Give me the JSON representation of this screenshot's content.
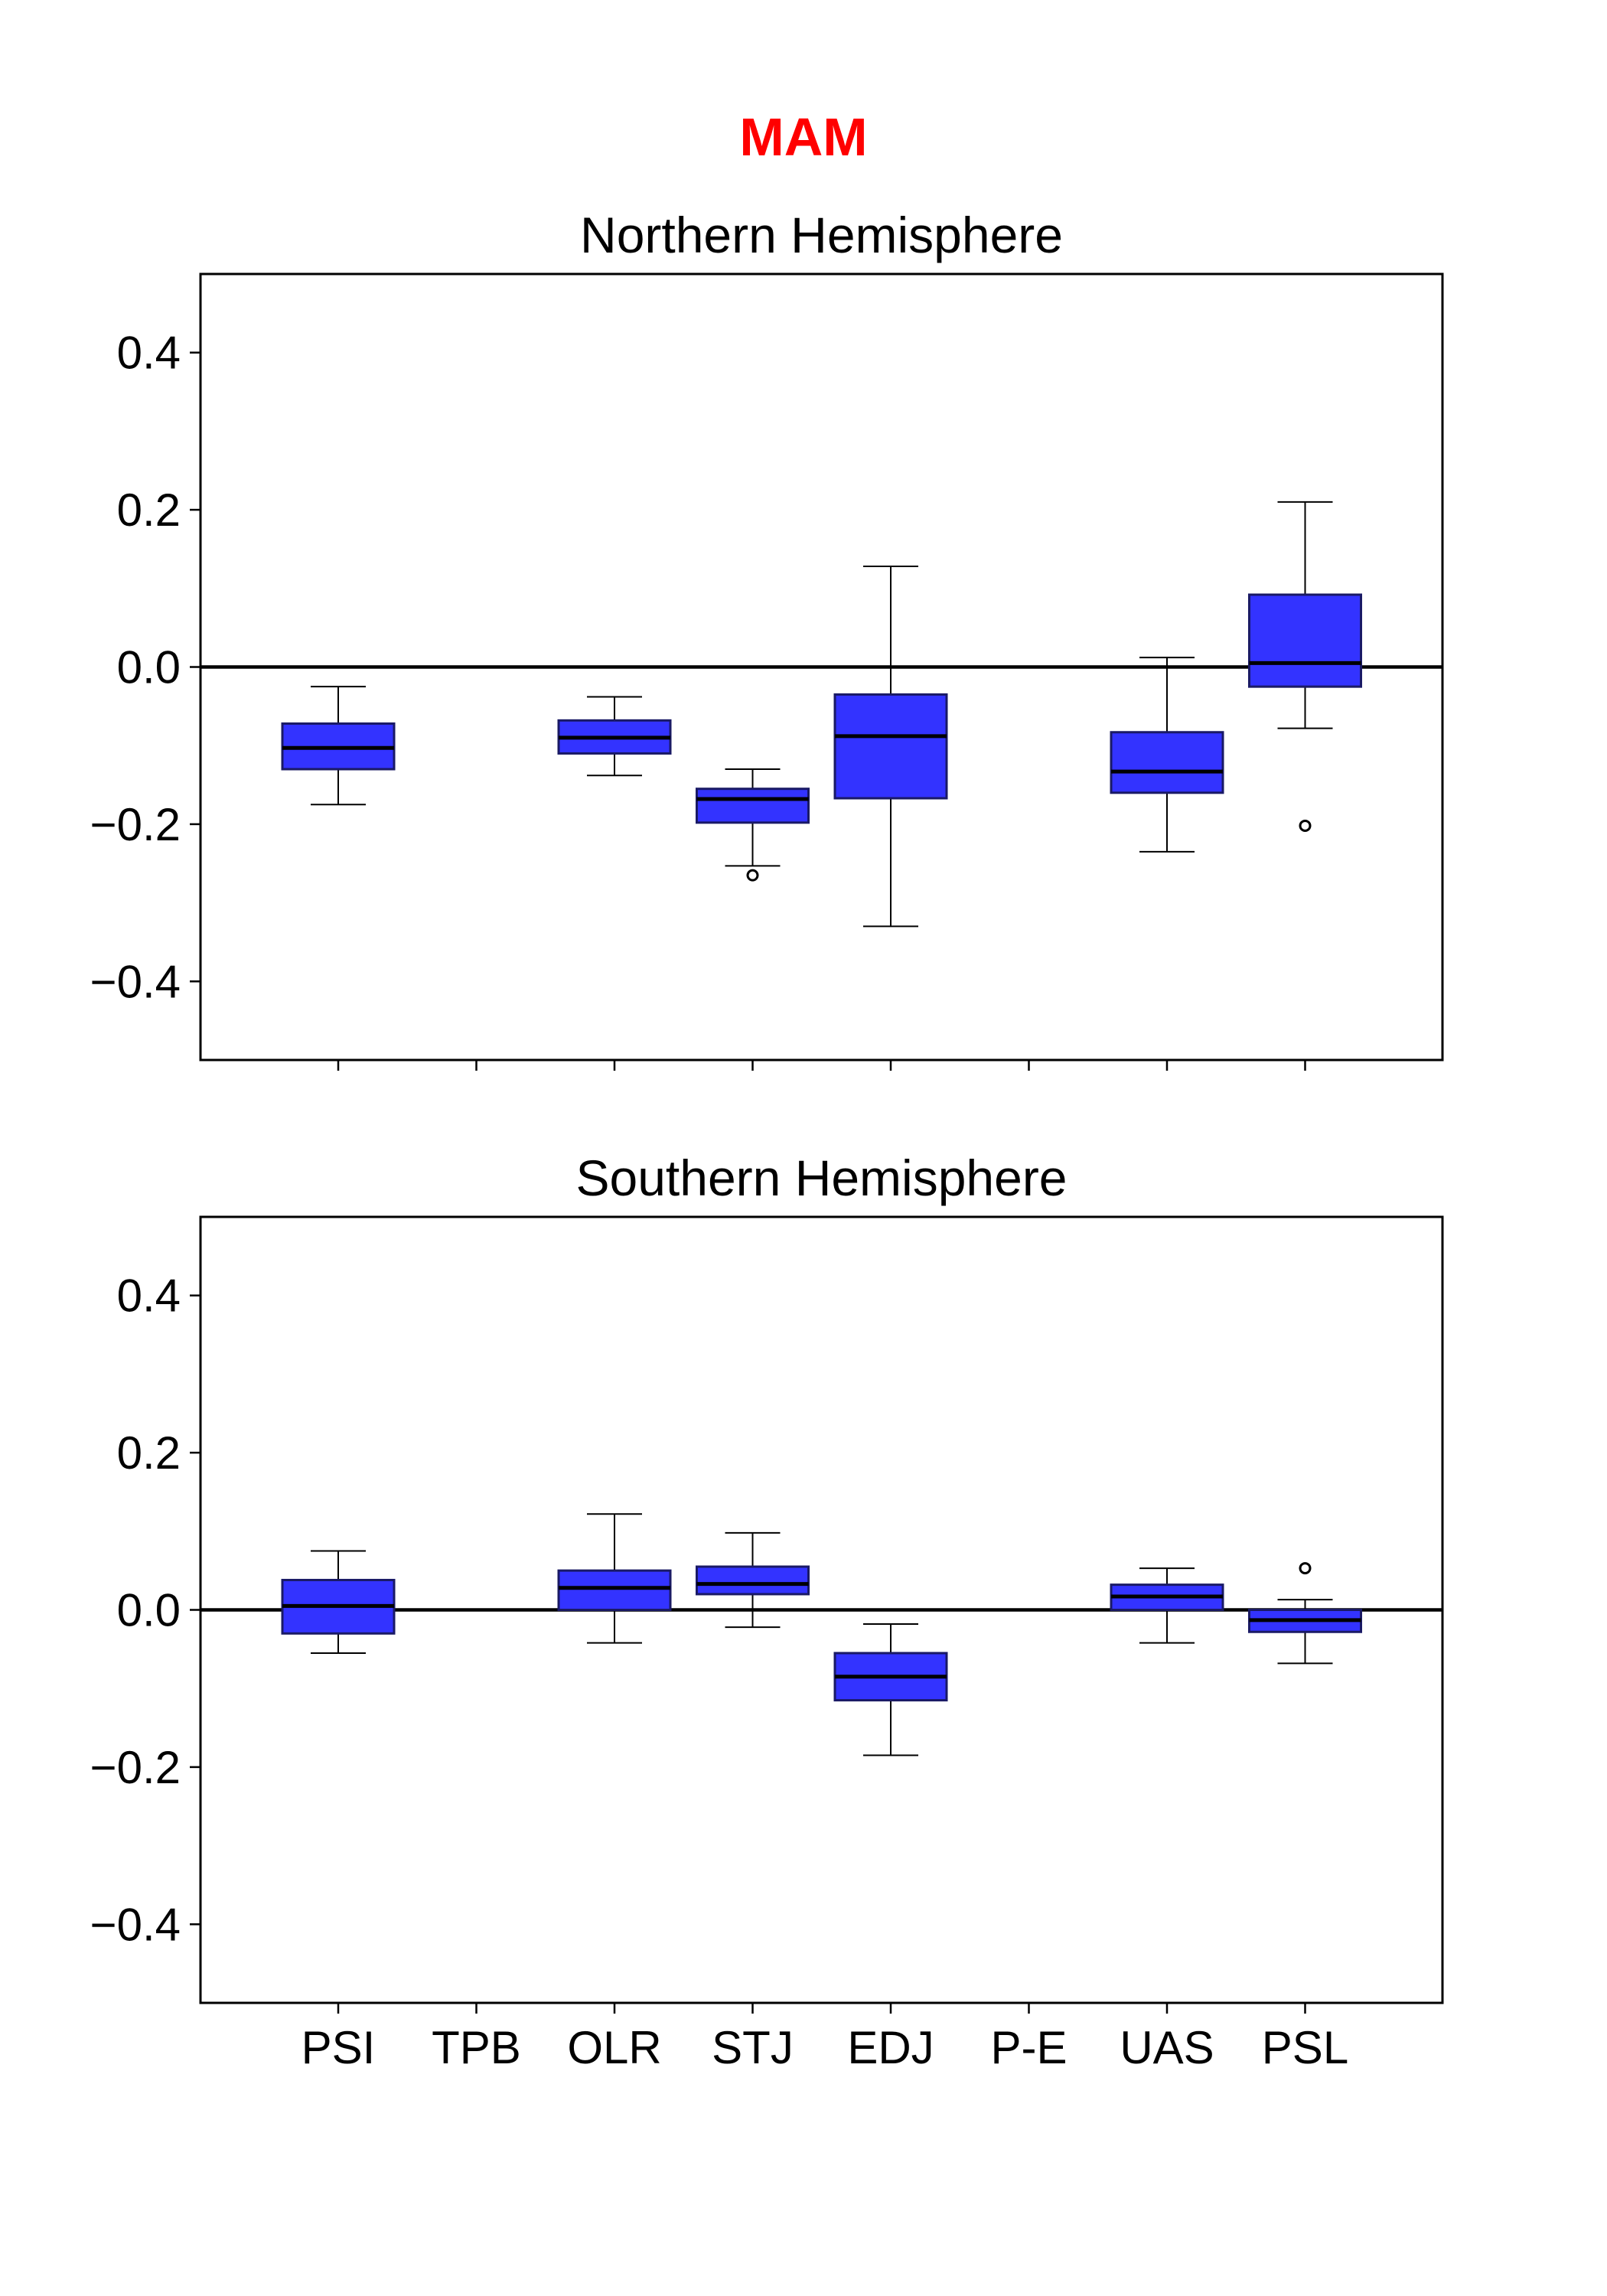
{
  "figure": {
    "suptitle": "MAM",
    "suptitle_color": "#ff0000"
  },
  "colors": {
    "box_fill": "#3333ff",
    "box_edge": "#1a1a66",
    "median": "#000000",
    "zero_line": "#000000"
  },
  "chart_data": [
    {
      "type": "box",
      "title": "Northern Hemisphere",
      "xlabel": "",
      "ylabel": "",
      "categories": [
        "PSI",
        "TPB",
        "OLR",
        "STJ",
        "EDJ",
        "P-E",
        "UAS",
        "PSL"
      ],
      "show_tick_labels": false,
      "ylim": [
        -0.5,
        0.5
      ],
      "yticks": [
        -0.4,
        -0.2,
        0.0,
        0.2,
        0.4
      ],
      "ytick_labels": [
        "−0.4",
        "−0.2",
        "0.0",
        "0.2",
        "0.4"
      ],
      "zero_line": true,
      "grid": false,
      "boxes": [
        {
          "category": "PSI",
          "whisker_low": -0.175,
          "q1": -0.13,
          "median": -0.103,
          "q3": -0.072,
          "whisker_high": -0.025,
          "outliers": []
        },
        {
          "category": "TPB"
        },
        {
          "category": "OLR",
          "whisker_low": -0.138,
          "q1": -0.11,
          "median": -0.09,
          "q3": -0.068,
          "whisker_high": -0.038,
          "outliers": []
        },
        {
          "category": "STJ",
          "whisker_low": -0.253,
          "q1": -0.198,
          "median": -0.168,
          "q3": -0.155,
          "whisker_high": -0.13,
          "outliers": [
            -0.265
          ]
        },
        {
          "category": "EDJ",
          "whisker_low": -0.33,
          "q1": -0.167,
          "median": -0.088,
          "q3": -0.035,
          "whisker_high": 0.128,
          "outliers": []
        },
        {
          "category": "P-E"
        },
        {
          "category": "UAS",
          "whisker_low": -0.235,
          "q1": -0.16,
          "median": -0.133,
          "q3": -0.083,
          "whisker_high": 0.012,
          "outliers": []
        },
        {
          "category": "PSL",
          "whisker_low": -0.078,
          "q1": -0.025,
          "median": 0.005,
          "q3": 0.092,
          "whisker_high": 0.21,
          "outliers": [
            -0.202
          ]
        }
      ]
    },
    {
      "type": "box",
      "title": "Southern Hemisphere",
      "xlabel": "",
      "ylabel": "",
      "categories": [
        "PSI",
        "TPB",
        "OLR",
        "STJ",
        "EDJ",
        "P-E",
        "UAS",
        "PSL"
      ],
      "show_tick_labels": true,
      "ylim": [
        -0.5,
        0.5
      ],
      "yticks": [
        -0.4,
        -0.2,
        0.0,
        0.2,
        0.4
      ],
      "ytick_labels": [
        "−0.4",
        "−0.2",
        "0.0",
        "0.2",
        "0.4"
      ],
      "zero_line": true,
      "grid": false,
      "boxes": [
        {
          "category": "PSI",
          "whisker_low": -0.055,
          "q1": -0.03,
          "median": 0.005,
          "q3": 0.038,
          "whisker_high": 0.075,
          "outliers": []
        },
        {
          "category": "TPB"
        },
        {
          "category": "OLR",
          "whisker_low": -0.042,
          "q1": 0.0,
          "median": 0.028,
          "q3": 0.05,
          "whisker_high": 0.122,
          "outliers": []
        },
        {
          "category": "STJ",
          "whisker_low": -0.022,
          "q1": 0.02,
          "median": 0.033,
          "q3": 0.055,
          "whisker_high": 0.098,
          "outliers": []
        },
        {
          "category": "EDJ",
          "whisker_low": -0.185,
          "q1": -0.115,
          "median": -0.085,
          "q3": -0.055,
          "whisker_high": -0.018,
          "outliers": []
        },
        {
          "category": "P-E"
        },
        {
          "category": "UAS",
          "whisker_low": -0.042,
          "q1": 0.0,
          "median": 0.017,
          "q3": 0.032,
          "whisker_high": 0.053,
          "outliers": []
        },
        {
          "category": "PSL",
          "whisker_low": -0.068,
          "q1": -0.028,
          "median": -0.013,
          "q3": 0.0,
          "whisker_high": 0.013,
          "outliers": [
            0.053
          ]
        }
      ]
    }
  ]
}
